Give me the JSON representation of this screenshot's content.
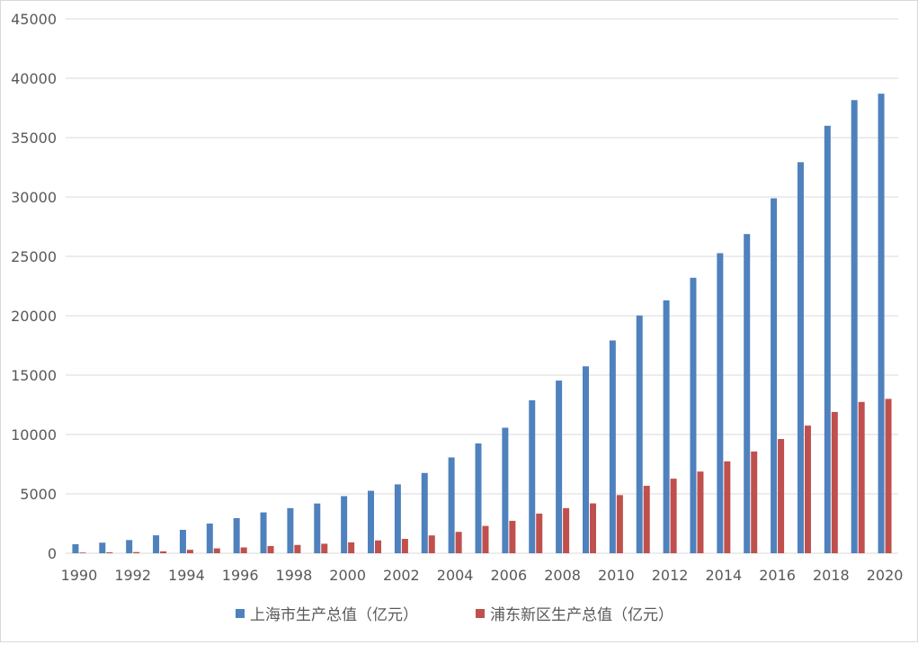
{
  "chart_data": {
    "type": "bar",
    "categories": [
      "1990",
      "1991",
      "1992",
      "1993",
      "1994",
      "1995",
      "1996",
      "1997",
      "1998",
      "1999",
      "2000",
      "2001",
      "2002",
      "2003",
      "2004",
      "2005",
      "2006",
      "2007",
      "2008",
      "2009",
      "2010",
      "2011",
      "2012",
      "2013",
      "2014",
      "2015",
      "2016",
      "2017",
      "2018",
      "2019",
      "2020"
    ],
    "x_tick_labels": [
      "1990",
      "1992",
      "1994",
      "1996",
      "1998",
      "2000",
      "2002",
      "2004",
      "2006",
      "2008",
      "2010",
      "2012",
      "2014",
      "2016",
      "2018",
      "2020"
    ],
    "y_ticks": [
      0,
      5000,
      10000,
      15000,
      20000,
      25000,
      30000,
      35000,
      40000,
      45000
    ],
    "ylim": [
      0,
      45000
    ],
    "grid": true,
    "legend_position": "bottom",
    "series": [
      {
        "name": "上海市生产总值（亿元）",
        "color": "#4f81bd",
        "values": [
          760,
          890,
          1110,
          1510,
          1970,
          2500,
          2960,
          3440,
          3800,
          4190,
          4810,
          5260,
          5800,
          6760,
          8070,
          9250,
          10570,
          12880,
          14540,
          15740,
          17920,
          20020,
          21300,
          23200,
          25270,
          26880,
          29890,
          32930,
          36000,
          38160,
          38700
        ]
      },
      {
        "name": "浦东新区生产总值（亿元）",
        "color": "#c0504d",
        "values": [
          60,
          75,
          100,
          160,
          290,
          410,
          490,
          610,
          700,
          800,
          920,
          1080,
          1210,
          1500,
          1800,
          2300,
          2730,
          3340,
          3800,
          4200,
          4900,
          5680,
          6280,
          6880,
          7740,
          8570,
          9620,
          10750,
          11900,
          12740,
          13000
        ]
      }
    ]
  }
}
